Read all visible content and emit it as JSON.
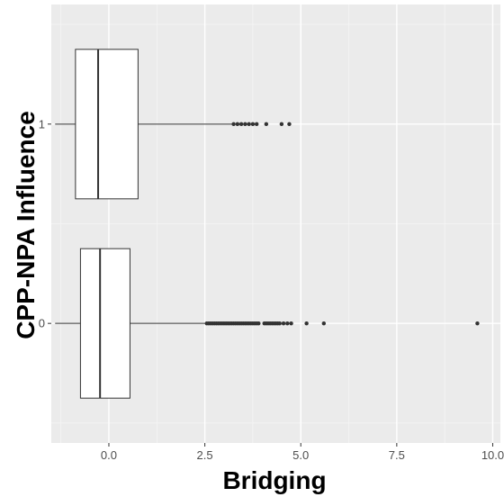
{
  "chart_data": {
    "type": "boxplot",
    "orientation": "horizontal",
    "xlabel": "Bridging",
    "ylabel": "CPP-NPA Influence",
    "xlim": [
      -1.5,
      10.2
    ],
    "ylim": [
      -0.6,
      1.6
    ],
    "x_ticks": [
      0.0,
      2.5,
      5.0,
      7.5,
      10.0
    ],
    "x_tick_labels": [
      "0.0",
      "2.5",
      "5.0",
      "7.5",
      "10.0"
    ],
    "y_ticks": [
      0,
      1
    ],
    "y_tick_labels": [
      "0",
      "1"
    ],
    "grid": true,
    "legend": "none",
    "colors": {
      "panel": "#ebebeb",
      "grid_major": "#ffffff",
      "box_fill": "#ffffff",
      "box_line": "#333333",
      "outlier": "#333333"
    },
    "groups": [
      {
        "category": "0",
        "whisker_low": -1.4,
        "q1": -0.74,
        "median": -0.23,
        "q3": 0.55,
        "whisker_high": 2.5,
        "outliers": [
          2.55,
          2.6,
          2.65,
          2.7,
          2.75,
          2.8,
          2.85,
          2.9,
          2.95,
          3.0,
          3.05,
          3.1,
          3.15,
          3.2,
          3.25,
          3.3,
          3.35,
          3.4,
          3.45,
          3.5,
          3.55,
          3.6,
          3.65,
          3.7,
          3.75,
          3.8,
          3.85,
          3.9,
          4.05,
          4.1,
          4.15,
          4.2,
          4.25,
          4.3,
          4.35,
          4.4,
          4.45,
          4.55,
          4.65,
          4.75,
          5.15,
          5.6,
          9.6
        ]
      },
      {
        "category": "1",
        "whisker_low": -1.4,
        "q1": -0.87,
        "median": -0.28,
        "q3": 0.76,
        "whisker_high": 3.2,
        "outliers": [
          3.25,
          3.35,
          3.45,
          3.55,
          3.65,
          3.75,
          3.85,
          4.1,
          4.5,
          4.7
        ]
      }
    ]
  }
}
